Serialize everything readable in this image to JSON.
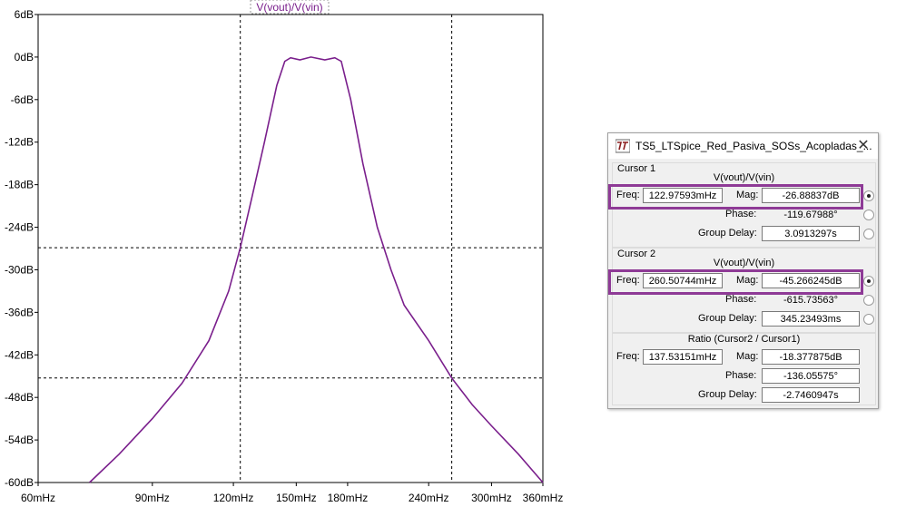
{
  "plot": {
    "trace_title": "V(vout)/V(vin)",
    "trace_color": "#7a1f8c",
    "y_ticks": [
      {
        "label": "6dB",
        "value": 6
      },
      {
        "label": "0dB",
        "value": 0
      },
      {
        "label": "-6dB",
        "value": -6
      },
      {
        "label": "-12dB",
        "value": -12
      },
      {
        "label": "-18dB",
        "value": -18
      },
      {
        "label": "-24dB",
        "value": -24
      },
      {
        "label": "-30dB",
        "value": -30
      },
      {
        "label": "-36dB",
        "value": -36
      },
      {
        "label": "-42dB",
        "value": -42
      },
      {
        "label": "-48dB",
        "value": -48
      },
      {
        "label": "-54dB",
        "value": -54
      },
      {
        "label": "-60dB",
        "value": -60
      }
    ],
    "x_ticks": [
      {
        "label": "60mHz",
        "value": 60
      },
      {
        "label": "90mHz",
        "value": 90
      },
      {
        "label": "120mHz",
        "value": 120
      },
      {
        "label": "150mHz",
        "value": 150
      },
      {
        "label": "180mHz",
        "value": 180
      },
      {
        "label": "240mHz",
        "value": 240
      },
      {
        "label": "300mHz",
        "value": 300
      },
      {
        "label": "360mHz",
        "value": 360
      }
    ],
    "x_range_mHz": [
      60,
      360
    ],
    "y_range_dB": [
      -60,
      6
    ],
    "x_scale": "log",
    "cursor1": {
      "freq_mHz": 122.97593,
      "mag_dB": -26.88837
    },
    "cursor2": {
      "freq_mHz": 260.50744,
      "mag_dB": -45.266245
    },
    "trace": [
      [
        72,
        -60
      ],
      [
        80,
        -56
      ],
      [
        90,
        -51
      ],
      [
        100,
        -46
      ],
      [
        110,
        -40
      ],
      [
        118,
        -33
      ],
      [
        122.97593,
        -26.88837
      ],
      [
        128,
        -20
      ],
      [
        134,
        -12
      ],
      [
        140,
        -4
      ],
      [
        144,
        -0.6
      ],
      [
        147,
        -0.1
      ],
      [
        152,
        -0.4
      ],
      [
        158,
        0
      ],
      [
        166,
        -0.4
      ],
      [
        172,
        -0.1
      ],
      [
        176,
        -0.6
      ],
      [
        182,
        -6
      ],
      [
        190,
        -15
      ],
      [
        200,
        -24
      ],
      [
        210,
        -30
      ],
      [
        220,
        -35
      ],
      [
        240,
        -40
      ],
      [
        260.50744,
        -45.266245
      ],
      [
        280,
        -49
      ],
      [
        300,
        -52
      ],
      [
        330,
        -56
      ],
      [
        360,
        -60
      ]
    ]
  },
  "dialog": {
    "title": "TS5_LTSpice_Red_Pasiva_SOSs_Acopladas_...",
    "close_glyph": "✕",
    "cursor1": {
      "section_label": "Cursor 1",
      "trace": "V(vout)/V(vin)",
      "freq_label": "Freq:",
      "freq": "122.97593mHz",
      "mag_label": "Mag:",
      "mag": "-26.88837dB",
      "phase_label": "Phase:",
      "phase": "-119.67988°",
      "gd_label": "Group Delay:",
      "gd": "3.0913297s"
    },
    "cursor2": {
      "section_label": "Cursor 2",
      "trace": "V(vout)/V(vin)",
      "freq_label": "Freq:",
      "freq": "260.50744mHz",
      "mag_label": "Mag:",
      "mag": "-45.266245dB",
      "phase_label": "Phase:",
      "phase": "-615.73563°",
      "gd_label": "Group Delay:",
      "gd": "345.23493ms"
    },
    "ratio": {
      "section_label": "Ratio (Cursor2 / Cursor1)",
      "freq_label": "Freq:",
      "freq": "137.53151mHz",
      "mag_label": "Mag:",
      "mag": "-18.377875dB",
      "phase_label": "Phase:",
      "phase": "-136.05575°",
      "gd_label": "Group Delay:",
      "gd": "-2.7460947s"
    },
    "highlight_color": "#8e3a96"
  }
}
